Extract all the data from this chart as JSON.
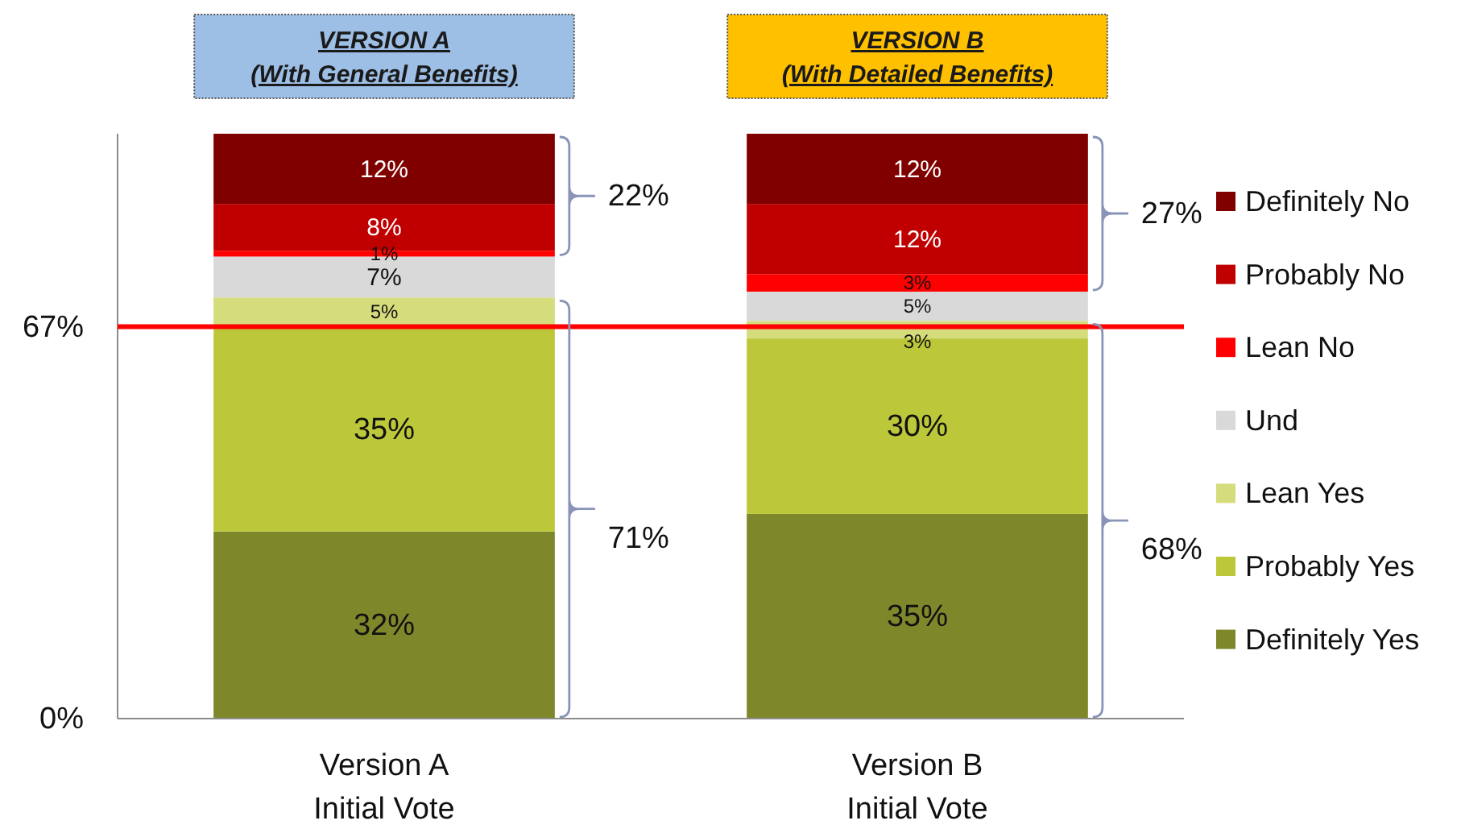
{
  "chart_data": {
    "type": "bar",
    "stacked": true,
    "categories": [
      "Version A\nInitial Vote",
      "Version B\nInitial Vote"
    ],
    "series": [
      {
        "name": "Definitely Yes",
        "color": "#7f872b",
        "values": [
          32,
          35
        ],
        "value_labels": [
          "32%",
          "35%"
        ]
      },
      {
        "name": "Probably Yes",
        "color": "#bcc83a",
        "values": [
          35,
          30
        ],
        "value_labels": [
          "35%",
          "30%"
        ]
      },
      {
        "name": "Lean Yes",
        "color": "#d5dc7c",
        "values": [
          5,
          3
        ],
        "value_labels": [
          "5%",
          "3%"
        ]
      },
      {
        "name": "Und",
        "color": "#d9d9d9",
        "values": [
          7,
          5
        ],
        "value_labels": [
          "7%",
          "5%"
        ]
      },
      {
        "name": "Lean No",
        "color": "#ff0000",
        "values": [
          1,
          3
        ],
        "value_labels": [
          "1%",
          "3%"
        ]
      },
      {
        "name": "Probably No",
        "color": "#c00000",
        "values": [
          8,
          12
        ],
        "value_labels": [
          "8%",
          "12%"
        ]
      },
      {
        "name": "Definitely No",
        "color": "#800000",
        "values": [
          12,
          12
        ],
        "value_labels": [
          "12%",
          "12%"
        ]
      }
    ],
    "ylim": [
      0,
      100
    ],
    "yticks": [
      {
        "value": 0,
        "label": "0%"
      },
      {
        "value": 67,
        "label": "67%"
      }
    ],
    "ref_lines": [
      {
        "axis": "y",
        "value": 67,
        "color": "#ff0000"
      }
    ],
    "legend": "right",
    "annotations": [
      "VERSION A\n(With General Benefits)",
      "VERSION B\n(With Detailed Benefits)",
      "22%",
      "71%",
      "27%",
      "68%"
    ]
  }
}
